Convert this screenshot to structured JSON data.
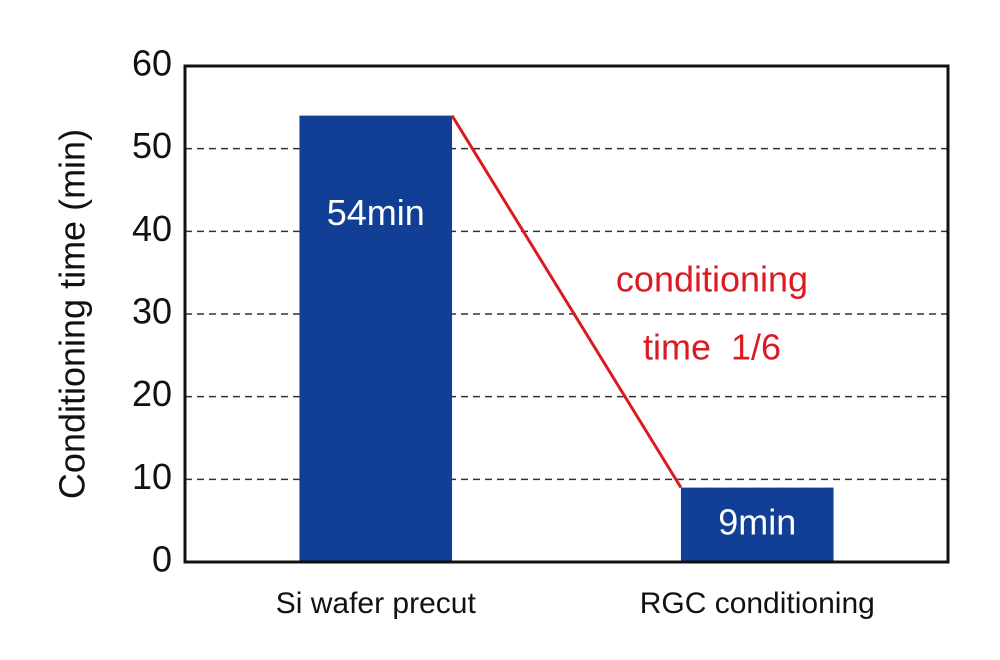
{
  "chart_data": {
    "type": "bar",
    "ylabel": "Conditioning time (min)",
    "categories": [
      "Si wafer precut",
      "RGC conditioning"
    ],
    "values": [
      54,
      9
    ],
    "value_labels": [
      "54min",
      "9min"
    ],
    "color": "#123f96",
    "ylim": [
      0,
      60
    ],
    "yticks": [
      0,
      10,
      20,
      30,
      40,
      50,
      60
    ],
    "grid": true,
    "annotation": [
      "conditioning",
      "time  1/6"
    ],
    "annotation_color": "#db1a22"
  }
}
